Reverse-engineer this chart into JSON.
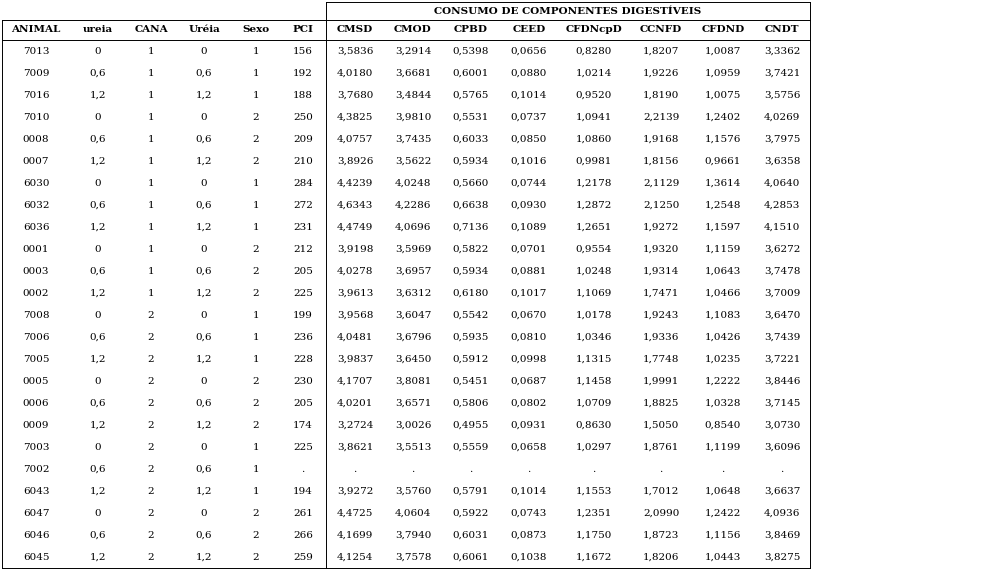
{
  "title": "CONSUMO DE COMPONENTES DIGESTÍVEIS",
  "headers_left": [
    "ANIMAL",
    "ureia",
    "CANA",
    "Uréia",
    "Sexo",
    "PCI"
  ],
  "headers_right": [
    "CMSD",
    "CMOD",
    "CPBD",
    "CEED",
    "CFDNcpD",
    "CCNFD",
    "CFDND",
    "CNDT"
  ],
  "rows": [
    [
      "7013",
      "0",
      "1",
      "0",
      "1",
      "156",
      "3,5836",
      "3,2914",
      "0,5398",
      "0,0656",
      "0,8280",
      "1,8207",
      "1,0087",
      "3,3362"
    ],
    [
      "7009",
      "0,6",
      "1",
      "0,6",
      "1",
      "192",
      "4,0180",
      "3,6681",
      "0,6001",
      "0,0880",
      "1,0214",
      "1,9226",
      "1,0959",
      "3,7421"
    ],
    [
      "7016",
      "1,2",
      "1",
      "1,2",
      "1",
      "188",
      "3,7680",
      "3,4844",
      "0,5765",
      "0,1014",
      "0,9520",
      "1,8190",
      "1,0075",
      "3,5756"
    ],
    [
      "7010",
      "0",
      "1",
      "0",
      "2",
      "250",
      "4,3825",
      "3,9810",
      "0,5531",
      "0,0737",
      "1,0941",
      "2,2139",
      "1,2402",
      "4,0269"
    ],
    [
      "0008",
      "0,6",
      "1",
      "0,6",
      "2",
      "209",
      "4,0757",
      "3,7435",
      "0,6033",
      "0,0850",
      "1,0860",
      "1,9168",
      "1,1576",
      "3,7975"
    ],
    [
      "0007",
      "1,2",
      "1",
      "1,2",
      "2",
      "210",
      "3,8926",
      "3,5622",
      "0,5934",
      "0,1016",
      "0,9981",
      "1,8156",
      "0,9661",
      "3,6358"
    ],
    [
      "6030",
      "0",
      "1",
      "0",
      "1",
      "284",
      "4,4239",
      "4,0248",
      "0,5660",
      "0,0744",
      "1,2178",
      "2,1129",
      "1,3614",
      "4,0640"
    ],
    [
      "6032",
      "0,6",
      "1",
      "0,6",
      "1",
      "272",
      "4,6343",
      "4,2286",
      "0,6638",
      "0,0930",
      "1,2872",
      "2,1250",
      "1,2548",
      "4,2853"
    ],
    [
      "6036",
      "1,2",
      "1",
      "1,2",
      "1",
      "231",
      "4,4749",
      "4,0696",
      "0,7136",
      "0,1089",
      "1,2651",
      "1,9272",
      "1,1597",
      "4,1510"
    ],
    [
      "0001",
      "0",
      "1",
      "0",
      "2",
      "212",
      "3,9198",
      "3,5969",
      "0,5822",
      "0,0701",
      "0,9554",
      "1,9320",
      "1,1159",
      "3,6272"
    ],
    [
      "0003",
      "0,6",
      "1",
      "0,6",
      "2",
      "205",
      "4,0278",
      "3,6957",
      "0,5934",
      "0,0881",
      "1,0248",
      "1,9314",
      "1,0643",
      "3,7478"
    ],
    [
      "0002",
      "1,2",
      "1",
      "1,2",
      "2",
      "225",
      "3,9613",
      "3,6312",
      "0,6180",
      "0,1017",
      "1,1069",
      "1,7471",
      "1,0466",
      "3,7009"
    ],
    [
      "7008",
      "0",
      "2",
      "0",
      "1",
      "199",
      "3,9568",
      "3,6047",
      "0,5542",
      "0,0670",
      "1,0178",
      "1,9243",
      "1,1083",
      "3,6470"
    ],
    [
      "7006",
      "0,6",
      "2",
      "0,6",
      "1",
      "236",
      "4,0481",
      "3,6796",
      "0,5935",
      "0,0810",
      "1,0346",
      "1,9336",
      "1,0426",
      "3,7439"
    ],
    [
      "7005",
      "1,2",
      "2",
      "1,2",
      "1",
      "228",
      "3,9837",
      "3,6450",
      "0,5912",
      "0,0998",
      "1,1315",
      "1,7748",
      "1,0235",
      "3,7221"
    ],
    [
      "0005",
      "0",
      "2",
      "0",
      "2",
      "230",
      "4,1707",
      "3,8081",
      "0,5451",
      "0,0687",
      "1,1458",
      "1,9991",
      "1,2222",
      "3,8446"
    ],
    [
      "0006",
      "0,6",
      "2",
      "0,6",
      "2",
      "205",
      "4,0201",
      "3,6571",
      "0,5806",
      "0,0802",
      "1,0709",
      "1,8825",
      "1,0328",
      "3,7145"
    ],
    [
      "0009",
      "1,2",
      "2",
      "1,2",
      "2",
      "174",
      "3,2724",
      "3,0026",
      "0,4955",
      "0,0931",
      "0,8630",
      "1,5050",
      "0,8540",
      "3,0730"
    ],
    [
      "7003",
      "0",
      "2",
      "0",
      "1",
      "225",
      "3,8621",
      "3,5513",
      "0,5559",
      "0,0658",
      "1,0297",
      "1,8761",
      "1,1199",
      "3,6096"
    ],
    [
      "7002",
      "0,6",
      "2",
      "0,6",
      "1",
      ".",
      ".",
      ".",
      ".",
      ".",
      ".",
      ".",
      ".",
      "."
    ],
    [
      "6043",
      "1,2",
      "2",
      "1,2",
      "1",
      "194",
      "3,9272",
      "3,5760",
      "0,5791",
      "0,1014",
      "1,1553",
      "1,7012",
      "1,0648",
      "3,6637"
    ],
    [
      "6047",
      "0",
      "2",
      "0",
      "2",
      "261",
      "4,4725",
      "4,0604",
      "0,5922",
      "0,0743",
      "1,2351",
      "2,0990",
      "1,2422",
      "4,0936"
    ],
    [
      "6046",
      "0,6",
      "2",
      "0,6",
      "2",
      "266",
      "4,1699",
      "3,7940",
      "0,6031",
      "0,0873",
      "1,1750",
      "1,8723",
      "1,1156",
      "3,8469"
    ],
    [
      "6045",
      "1,2",
      "2",
      "1,2",
      "2",
      "259",
      "4,1254",
      "3,7578",
      "0,6061",
      "0,1038",
      "1,1672",
      "1,8206",
      "1,0443",
      "3,8275"
    ]
  ],
  "text_color": "#000000",
  "font_size": 7.5,
  "header_font_size": 7.5,
  "title_font_size": 7.5
}
